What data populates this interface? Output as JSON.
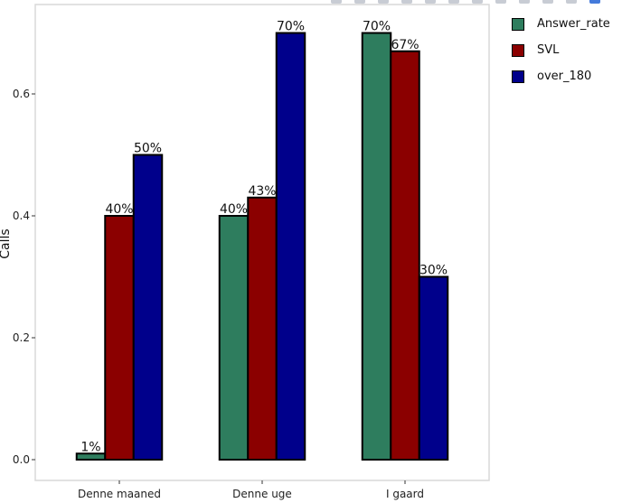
{
  "chart_data": {
    "type": "bar",
    "title": "",
    "xlabel": "",
    "ylabel": "Calls",
    "ylim": [
      -0.035,
      0.745
    ],
    "yticks": [
      0.0,
      0.2,
      0.4,
      0.6
    ],
    "ytick_labels": [
      "0.0",
      "0.2",
      "0.4",
      "0.6"
    ],
    "categories": [
      "Denne maaned",
      "Denne uge",
      "I gaard"
    ],
    "series": [
      {
        "name": "Answer_rate",
        "color": "#2e7d5e",
        "values": [
          0.01,
          0.4,
          0.7
        ],
        "labels": [
          "1%",
          "40%",
          "70%"
        ]
      },
      {
        "name": "SVL",
        "color": "#8b0000",
        "values": [
          0.4,
          0.43,
          0.67
        ],
        "labels": [
          "40%",
          "43%",
          "67%"
        ]
      },
      {
        "name": "over_180",
        "color": "#00008b",
        "values": [
          0.5,
          0.7,
          0.3
        ],
        "labels": [
          "50%",
          "70%",
          "30%"
        ]
      }
    ],
    "legend_position": "right",
    "grid": false
  }
}
